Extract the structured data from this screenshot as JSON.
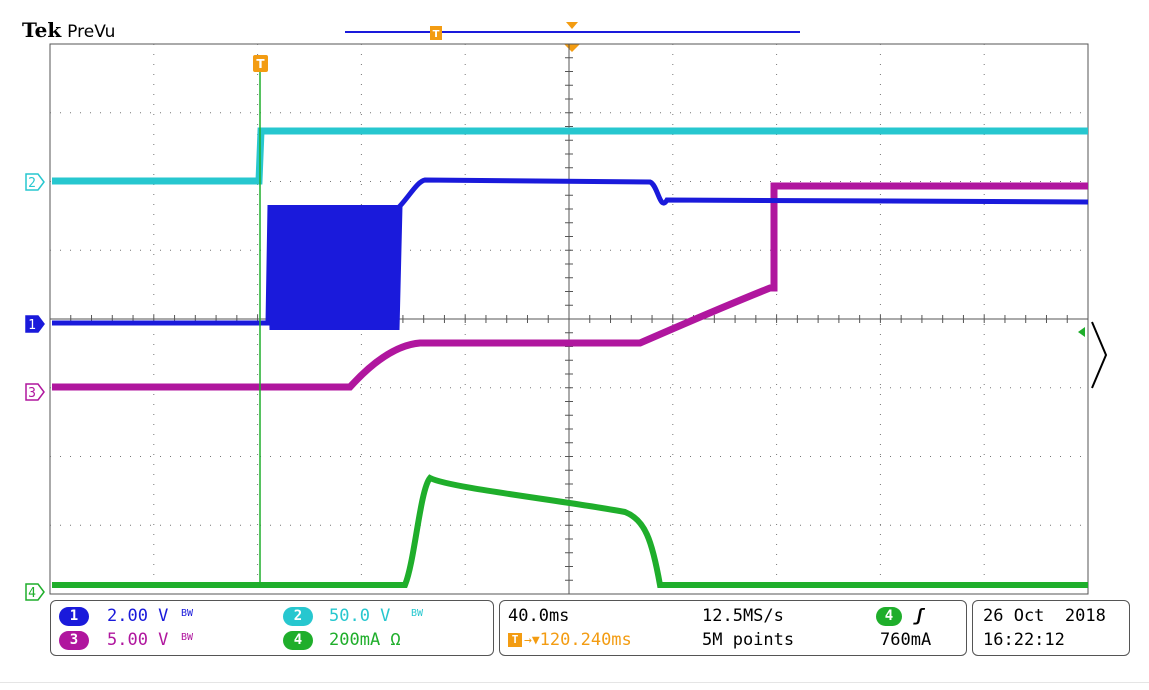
{
  "brand": {
    "name": "Tek",
    "mode": "PreVu"
  },
  "trigger_marker": "T",
  "channels": [
    {
      "id": "1",
      "label": "1",
      "color": "#1a1adb",
      "scale": "2.00 V",
      "bw": "BW"
    },
    {
      "id": "2",
      "label": "2",
      "color": "#27c7cf",
      "scale": "50.0 V",
      "bw": "BW"
    },
    {
      "id": "3",
      "label": "3",
      "color": "#b0169e",
      "scale": "5.00 V",
      "bw": "BW"
    },
    {
      "id": "4",
      "label": "4",
      "color": "#1fae2b",
      "scale": "200mA Ω",
      "bw": ""
    }
  ],
  "timebase": {
    "scale": "40.0ms",
    "sample_rate": "12.5MS/s",
    "trigger_position": "120.240ms",
    "record_length": "5M points"
  },
  "trigger": {
    "channel": "4",
    "slope": "ʃ",
    "level": "760mA"
  },
  "datetime": {
    "date": "26 Oct  2018",
    "time": "16:22:12"
  },
  "colors": {
    "orange": "#f39c12",
    "grid": "#555555"
  }
}
